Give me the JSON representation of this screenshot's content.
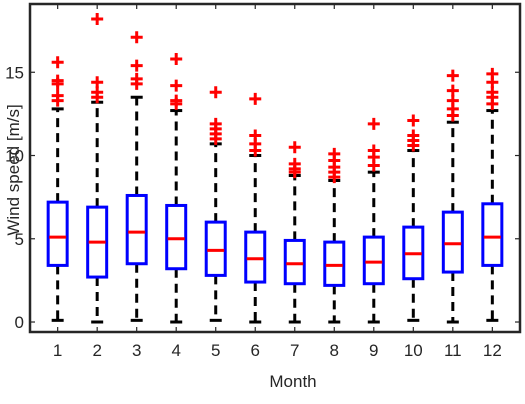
{
  "chart_data": {
    "type": "boxplot",
    "title": "",
    "xlabel": "Month",
    "ylabel": "Wind speed [m/s]",
    "ylim": [
      -0.6,
      19.1
    ],
    "xlim": [
      0.3,
      12.7
    ],
    "yticks": [
      0,
      5,
      10,
      15
    ],
    "categories": [
      "1",
      "2",
      "3",
      "4",
      "5",
      "6",
      "7",
      "8",
      "9",
      "10",
      "11",
      "12"
    ],
    "grid": false,
    "colors": {
      "box": "#0000ff",
      "median": "#ff0000",
      "whisker": "#000000",
      "outlier": "#ff0000"
    },
    "boxes": [
      {
        "min": 0.1,
        "q1": 3.4,
        "median": 5.1,
        "q3": 7.2,
        "max": 12.8,
        "outliers": [
          13.3,
          13.6,
          14.3,
          14.5,
          15.6
        ]
      },
      {
        "min": 0.0,
        "q1": 2.7,
        "median": 4.8,
        "q3": 6.9,
        "max": 13.2,
        "outliers": [
          13.5,
          13.8,
          14.4,
          18.2
        ]
      },
      {
        "min": 0.1,
        "q1": 3.5,
        "median": 5.4,
        "q3": 7.6,
        "max": 13.5,
        "outliers": [
          14.3,
          14.6,
          15.4,
          17.1
        ]
      },
      {
        "min": 0.0,
        "q1": 3.2,
        "median": 5.0,
        "q3": 7.0,
        "max": 12.7,
        "outliers": [
          13.1,
          13.3,
          14.2,
          15.8
        ]
      },
      {
        "min": 0.1,
        "q1": 2.8,
        "median": 4.3,
        "q3": 6.0,
        "max": 10.7,
        "outliers": [
          11.0,
          11.3,
          11.6,
          11.9,
          13.8
        ]
      },
      {
        "min": 0.0,
        "q1": 2.4,
        "median": 3.8,
        "q3": 5.4,
        "max": 10.0,
        "outliers": [
          10.3,
          10.7,
          11.2,
          13.4
        ]
      },
      {
        "min": 0.0,
        "q1": 2.3,
        "median": 3.5,
        "q3": 4.9,
        "max": 8.8,
        "outliers": [
          9.0,
          9.2,
          9.5,
          10.5
        ]
      },
      {
        "min": 0.0,
        "q1": 2.2,
        "median": 3.4,
        "q3": 4.8,
        "max": 8.5,
        "outliers": [
          8.7,
          9.0,
          9.3,
          9.7,
          10.1
        ]
      },
      {
        "min": 0.0,
        "q1": 2.3,
        "median": 3.6,
        "q3": 5.1,
        "max": 9.0,
        "outliers": [
          9.4,
          9.9,
          10.3,
          11.9
        ]
      },
      {
        "min": 0.1,
        "q1": 2.6,
        "median": 4.1,
        "q3": 5.7,
        "max": 10.3,
        "outliers": [
          10.6,
          10.9,
          11.2,
          12.1
        ]
      },
      {
        "min": 0.0,
        "q1": 3.0,
        "median": 4.7,
        "q3": 6.6,
        "max": 12.0,
        "outliers": [
          12.4,
          12.8,
          13.3,
          13.9,
          14.8
        ]
      },
      {
        "min": 0.1,
        "q1": 3.4,
        "median": 5.1,
        "q3": 7.1,
        "max": 12.7,
        "outliers": [
          13.1,
          13.5,
          13.8,
          14.4,
          14.9
        ]
      }
    ]
  }
}
